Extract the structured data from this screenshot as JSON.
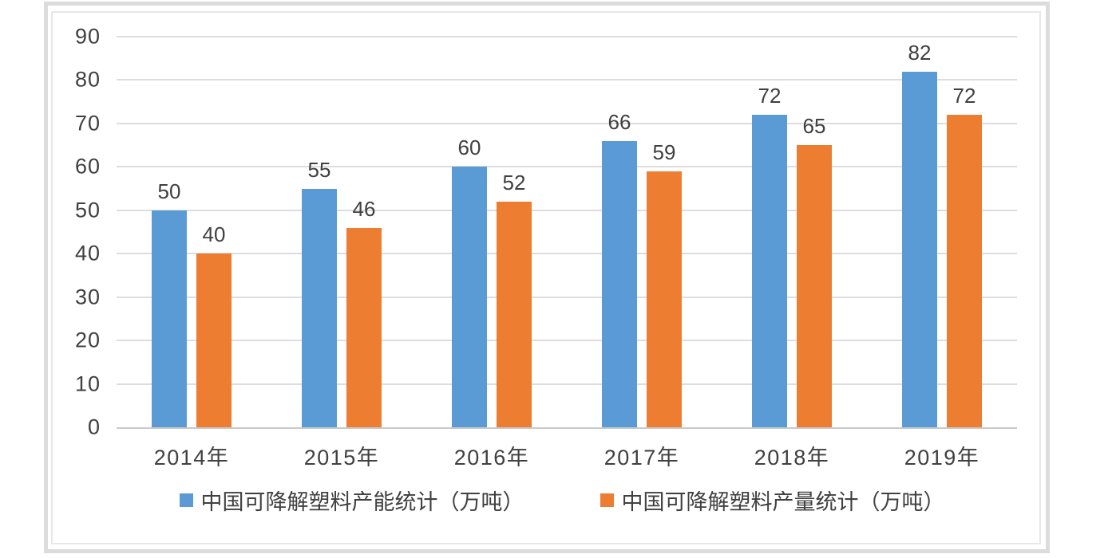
{
  "chart_data": {
    "type": "bar",
    "categories": [
      "2014年",
      "2015年",
      "2016年",
      "2017年",
      "2018年",
      "2019年"
    ],
    "series": [
      {
        "name": "中国可降解塑料产能统计（万吨）",
        "color": "#5B9BD5",
        "values": [
          50,
          55,
          60,
          66,
          72,
          82
        ]
      },
      {
        "name": "中国可降解塑料产量统计（万吨）",
        "color": "#ED7D31",
        "values": [
          40,
          46,
          52,
          59,
          65,
          72
        ]
      }
    ],
    "ylim": [
      0,
      90
    ],
    "yticks": [
      0,
      10,
      20,
      30,
      40,
      50,
      60,
      70,
      80,
      90
    ],
    "grid": true,
    "data_labels": true,
    "legend_position": "bottom"
  },
  "style_colors": {
    "series_capacity": "#5B9BD5",
    "series_production": "#ED7D31",
    "gridline": "#DDDDDD",
    "axis_line": "#C9C9C9",
    "text": "#404040",
    "frame_border_outer": "#DCDCDC",
    "frame_border_inner": "#E7E7E7",
    "background": "#FFFFFF"
  }
}
